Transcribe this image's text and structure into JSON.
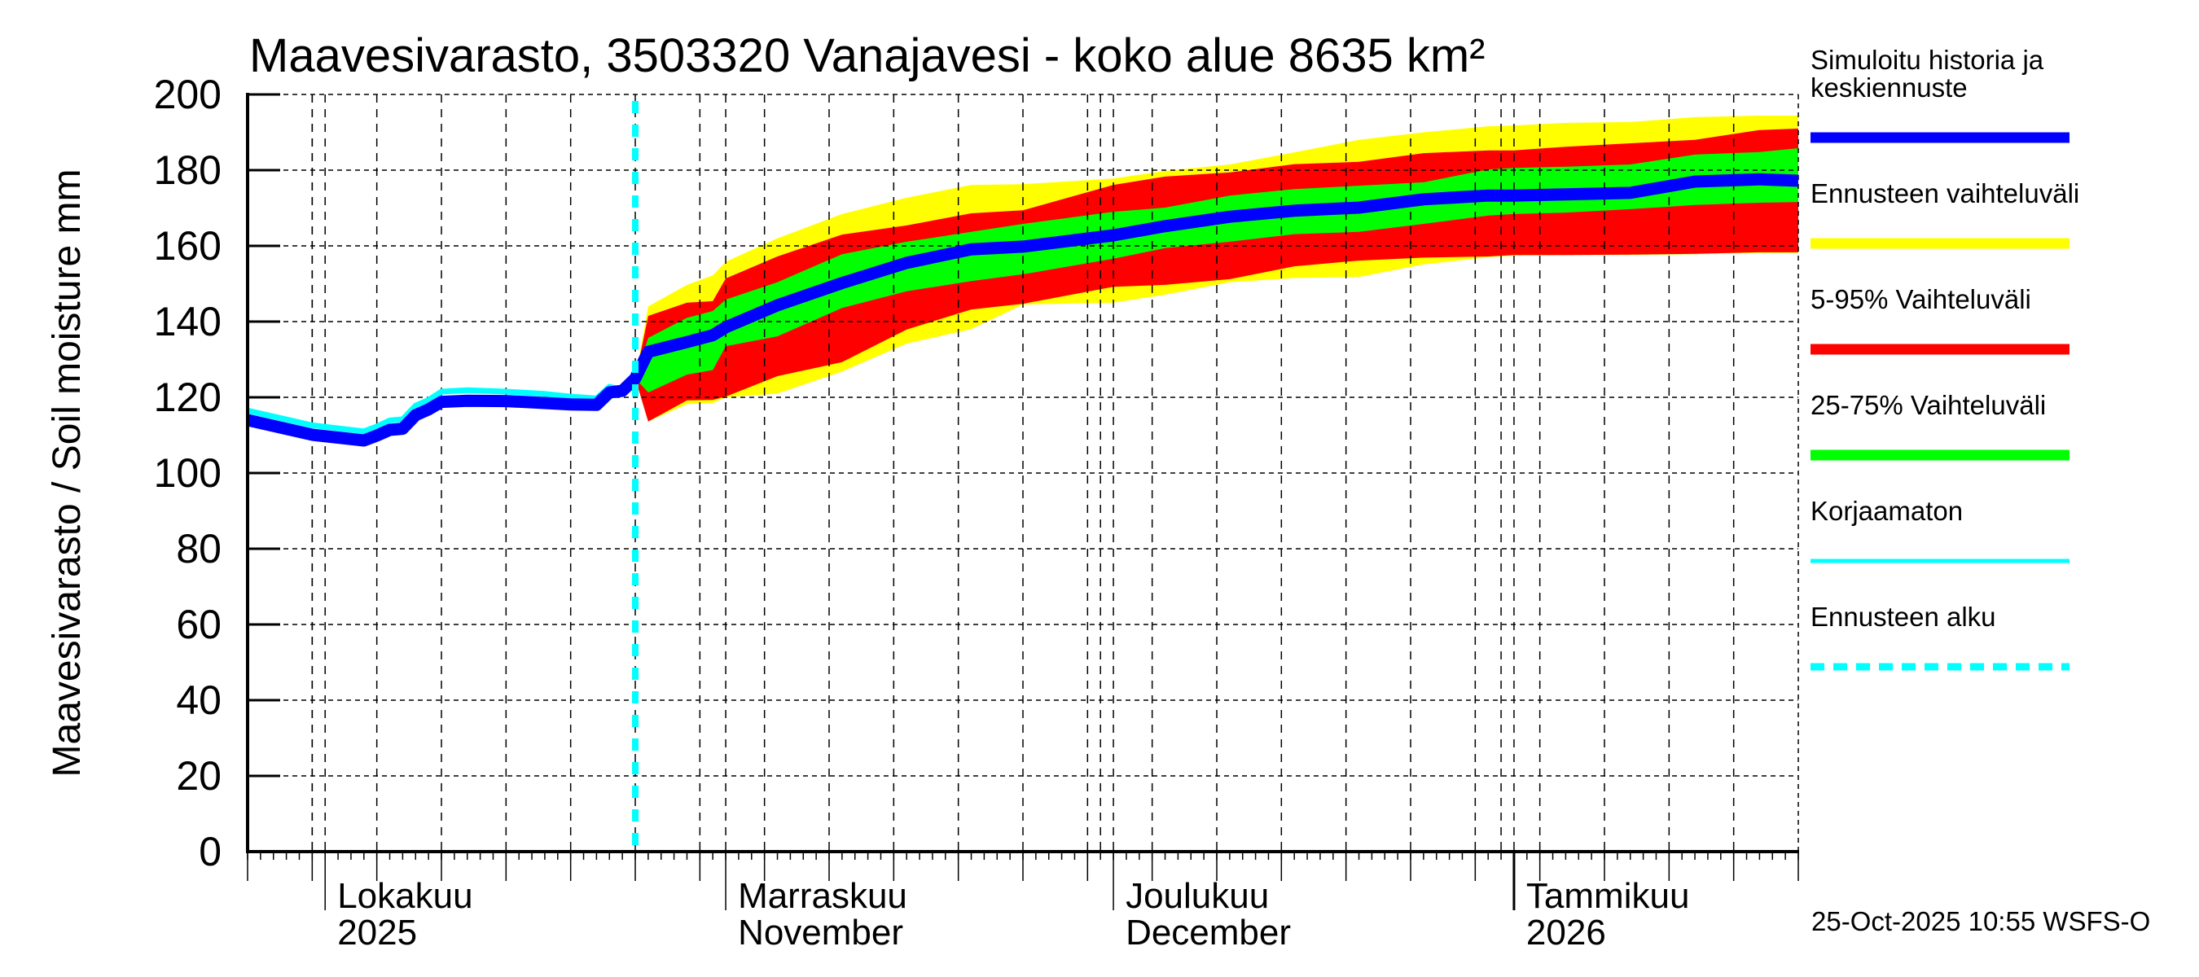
{
  "chart_data": {
    "type": "area",
    "title": "Maavesivarasto, 3503320 Vanajavesi - koko alue 8635 km²",
    "ylabel": "Maavesivarasto / Soil moisture   mm",
    "xlabel": "",
    "ylim": [
      0,
      200
    ],
    "yticks": [
      0,
      20,
      40,
      60,
      80,
      100,
      120,
      140,
      160,
      180,
      200
    ],
    "xlim": [
      "2025-09-25",
      "2026-01-23"
    ],
    "grid": true,
    "legend_position": "right",
    "forecast_start": "2025-10-25",
    "month_labels": [
      {
        "date": "2025-10-01",
        "line1": "Lokakuu",
        "line2": "2025"
      },
      {
        "date": "2025-11-01",
        "line1": "Marraskuu",
        "line2": "November"
      },
      {
        "date": "2025-12-01",
        "line1": "Joulukuu",
        "line2": "December"
      },
      {
        "date": "2026-01-01",
        "line1": "Tammikuu",
        "line2": "2026"
      }
    ],
    "colors": {
      "history": "#0000ff",
      "range_full": "#ffff00",
      "range_5_95": "#ff0000",
      "range_25_75": "#00ff00",
      "uncorrected": "#00ffff",
      "forecast_start": "#00ffff"
    },
    "legend": [
      {
        "key": "history",
        "label": "Simuloitu historia ja keskiennuste",
        "lines": [
          "Simuloitu historia ja",
          "keskiennuste"
        ],
        "color": "#0000ff",
        "style": "thick"
      },
      {
        "key": "range_full",
        "label": "Ennusteen vaihteluväli",
        "lines": [
          "Ennusteen vaihteluväli"
        ],
        "color": "#ffff00",
        "style": "thick"
      },
      {
        "key": "range_5_95",
        "label": "5-95% Vaihteluväli",
        "lines": [
          "5-95% Vaihteluväli"
        ],
        "color": "#ff0000",
        "style": "thick"
      },
      {
        "key": "range_25_75",
        "label": "25-75% Vaihteluväli",
        "lines": [
          "25-75% Vaihteluväli"
        ],
        "color": "#00ff00",
        "style": "thick"
      },
      {
        "key": "uncorrected",
        "label": "Korjaamaton",
        "lines": [
          "Korjaamaton"
        ],
        "color": "#00ffff",
        "style": "thin"
      },
      {
        "key": "forecast_start",
        "label": "Ennusteen alku",
        "lines": [
          "Ennusteen alku"
        ],
        "color": "#00ffff",
        "style": "dashed"
      }
    ],
    "series": [
      {
        "name": "Simuloitu historia ja keskiennuste",
        "x": [
          "2025-09-25",
          "2025-09-30",
          "2025-10-04",
          "2025-10-05",
          "2025-10-06",
          "2025-10-07",
          "2025-10-08",
          "2025-10-09",
          "2025-10-10",
          "2025-10-12",
          "2025-10-15",
          "2025-10-18",
          "2025-10-20",
          "2025-10-22",
          "2025-10-23",
          "2025-10-24",
          "2025-10-25",
          "2025-10-26",
          "2025-10-29",
          "2025-10-31",
          "2025-11-01",
          "2025-11-05",
          "2025-11-10",
          "2025-11-15",
          "2025-11-20",
          "2025-11-24",
          "2025-12-01",
          "2025-12-05",
          "2025-12-10",
          "2025-12-15",
          "2025-12-20",
          "2025-12-25",
          "2025-12-30",
          "2026-01-01",
          "2026-01-05",
          "2026-01-10",
          "2026-01-15",
          "2026-01-20",
          "2026-01-23"
        ],
        "values": [
          114.0,
          110.1,
          108.6,
          109.9,
          111.4,
          111.7,
          115.3,
          116.8,
          118.8,
          119.1,
          119.0,
          118.5,
          118.1,
          118.0,
          121.3,
          121.7,
          125.0,
          132.0,
          134.6,
          136.4,
          138.5,
          144.3,
          150.2,
          155.5,
          159.1,
          159.8,
          162.8,
          165.2,
          167.7,
          169.3,
          170.1,
          172.3,
          173.3,
          173.3,
          173.6,
          174.0,
          177.0,
          177.6,
          177.2
        ]
      },
      {
        "name": "Korjaamaton",
        "x": [
          "2025-09-25",
          "2025-09-30",
          "2025-10-04",
          "2025-10-05",
          "2025-10-06",
          "2025-10-07",
          "2025-10-08",
          "2025-10-09",
          "2025-10-10",
          "2025-10-12",
          "2025-10-15",
          "2025-10-18",
          "2025-10-20",
          "2025-10-22",
          "2025-10-23",
          "2025-10-24",
          "2025-10-25"
        ],
        "values": [
          116.5,
          112.6,
          111.0,
          112.3,
          113.9,
          114.2,
          117.8,
          119.3,
          121.5,
          121.9,
          121.5,
          120.9,
          120.2,
          119.7,
          122.8,
          122.0,
          125.0
        ]
      }
    ],
    "bands": {
      "x": [
        "2025-10-25",
        "2025-10-26",
        "2025-10-29",
        "2025-10-31",
        "2025-11-01",
        "2025-11-05",
        "2025-11-10",
        "2025-11-15",
        "2025-11-20",
        "2025-11-24",
        "2025-12-01",
        "2025-12-05",
        "2025-12-10",
        "2025-12-15",
        "2025-12-20",
        "2025-12-25",
        "2025-12-30",
        "2026-01-01",
        "2026-01-05",
        "2026-01-10",
        "2026-01-15",
        "2026-01-20",
        "2026-01-23"
      ],
      "range_full": {
        "name": "Ennusteen vaihteluväli",
        "upper": [
          125.0,
          144.0,
          149.7,
          152.2,
          155.8,
          162.0,
          168.4,
          172.7,
          176.1,
          176.3,
          177.8,
          179.8,
          181.5,
          184.7,
          188.0,
          190.0,
          191.6,
          191.8,
          192.5,
          192.7,
          194.0,
          194.4,
          194.4
        ],
        "lower": [
          125.0,
          113.6,
          118.2,
          118.5,
          120.0,
          121.0,
          126.8,
          134.2,
          138.0,
          144.5,
          145.0,
          147.1,
          150.4,
          151.5,
          151.8,
          155.1,
          157.0,
          157.4,
          157.5,
          157.6,
          157.8,
          158.1,
          158.1
        ]
      },
      "range_5_95": {
        "name": "5-95% Vaihteluväli",
        "upper": [
          125.0,
          141.5,
          145.0,
          145.4,
          151.4,
          157.2,
          163.0,
          165.4,
          168.6,
          169.4,
          176.1,
          178.3,
          179.4,
          181.6,
          182.2,
          184.5,
          185.2,
          185.2,
          186.2,
          187.1,
          188.0,
          190.6,
          191.0
        ],
        "lower": [
          125.0,
          113.6,
          119.2,
          119.3,
          120.2,
          125.6,
          129.3,
          137.9,
          143.2,
          144.7,
          149.2,
          149.7,
          151.2,
          154.6,
          156.1,
          156.9,
          157.2,
          157.6,
          157.6,
          157.7,
          157.9,
          158.3,
          158.3
        ]
      },
      "range_25_75": {
        "name": "25-75% Vaihteluväli",
        "upper": [
          125.0,
          135.7,
          141.0,
          142.8,
          145.8,
          150.4,
          157.8,
          161.1,
          163.7,
          165.8,
          169.0,
          170.1,
          173.3,
          175.0,
          175.9,
          176.8,
          180.2,
          180.6,
          180.9,
          181.5,
          184.1,
          184.8,
          185.8
        ],
        "lower": [
          125.0,
          121.3,
          126.0,
          127.2,
          133.5,
          136.1,
          143.6,
          148.0,
          150.7,
          152.5,
          156.6,
          159.4,
          161.1,
          163.1,
          163.7,
          165.8,
          168.0,
          168.4,
          168.8,
          169.7,
          170.8,
          171.4,
          171.6
        ]
      }
    },
    "timestamp": "25-Oct-2025 10:55 WSFS-O"
  }
}
